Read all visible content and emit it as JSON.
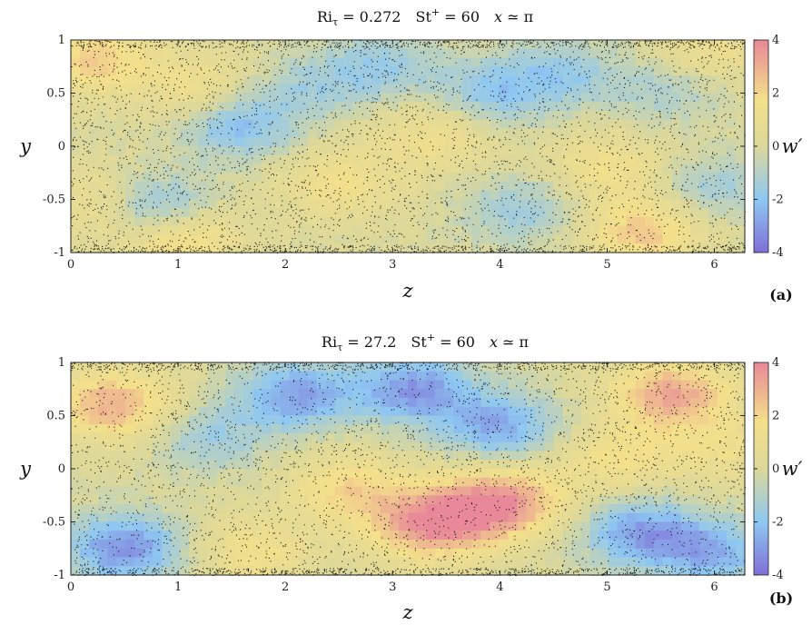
{
  "figure": {
    "colormap": [
      "#7f6fd8",
      "#8ec8f2",
      "#dcd89a",
      "#f4e08a",
      "#e88898"
    ],
    "particle_color": "#000000"
  },
  "chart_data": [
    {
      "type": "heatmap",
      "panel_label": "(a)",
      "title_parts": {
        "ri": "Ri",
        "ri_sub": "τ",
        "ri_val": " = 0.272",
        "st": "St",
        "st_sup": "+",
        "st_val": " = 60",
        "x": "x",
        "x_val": " ≃ π"
      },
      "xlabel": "z",
      "ylabel": "y",
      "colorbar_label": "w′",
      "xlim": [
        0,
        6.2832
      ],
      "ylim": [
        -1,
        1
      ],
      "clim": [
        -4,
        4
      ],
      "xticks": [
        0,
        1,
        2,
        3,
        4,
        5,
        6
      ],
      "xtick_labels": [
        "0",
        "1",
        "2",
        "3",
        "4",
        "5",
        "6"
      ],
      "yticks": [
        1,
        0.5,
        0,
        -0.5,
        -1
      ],
      "ytick_labels": [
        "1",
        "0.5",
        "0",
        "-0.5",
        "-1"
      ],
      "cticks": [
        4,
        2,
        0,
        -2,
        -4
      ],
      "ctick_labels": [
        "4",
        "2",
        "0",
        "-2",
        "-4"
      ],
      "field_blobs": [
        {
          "z": 0.3,
          "y": -0.55,
          "w": 1.8
        },
        {
          "z": 0.75,
          "y": -0.6,
          "w": -3.0
        },
        {
          "z": 0.2,
          "y": 0.82,
          "w": 2.2
        },
        {
          "z": 1.0,
          "y": -0.85,
          "w": 2.5
        },
        {
          "z": 1.55,
          "y": 0.2,
          "w": -2.2
        },
        {
          "z": 1.2,
          "y": 0.55,
          "w": 1.5
        },
        {
          "z": 2.2,
          "y": 0.55,
          "w": -1.2
        },
        {
          "z": 2.5,
          "y": -0.35,
          "w": 1.5
        },
        {
          "z": 2.9,
          "y": 0.75,
          "w": -1.6
        },
        {
          "z": 3.4,
          "y": 0.1,
          "w": 1.4
        },
        {
          "z": 3.95,
          "y": 0.5,
          "w": -1.8
        },
        {
          "z": 4.6,
          "y": 0.7,
          "w": -1.5
        },
        {
          "z": 4.2,
          "y": -0.6,
          "w": -1.6
        },
        {
          "z": 5.0,
          "y": -0.2,
          "w": 1.5
        },
        {
          "z": 5.6,
          "y": 0.55,
          "w": -1.4
        },
        {
          "z": 5.35,
          "y": -0.8,
          "w": 2.4
        },
        {
          "z": 6.0,
          "y": -0.4,
          "w": -1.4
        },
        {
          "z": 5.9,
          "y": 0.85,
          "w": 1.4
        }
      ],
      "particle_density": 0.55
    },
    {
      "type": "heatmap",
      "panel_label": "(b)",
      "title_parts": {
        "ri": "Ri",
        "ri_sub": "τ",
        "ri_val": " = 27.2",
        "st": "St",
        "st_sup": "+",
        "st_val": " = 60",
        "x": "x",
        "x_val": " ≃ π"
      },
      "xlabel": "z",
      "ylabel": "y",
      "colorbar_label": "w′",
      "xlim": [
        0,
        6.2832
      ],
      "ylim": [
        -1,
        1
      ],
      "clim": [
        -4,
        4
      ],
      "xticks": [
        0,
        1,
        2,
        3,
        4,
        5,
        6
      ],
      "xtick_labels": [
        "0",
        "1",
        "2",
        "3",
        "4",
        "5",
        "6"
      ],
      "yticks": [
        1,
        0.5,
        0,
        -0.5,
        -1
      ],
      "ytick_labels": [
        "1",
        "0.5",
        "0",
        "-0.5",
        "-1"
      ],
      "cticks": [
        4,
        2,
        0,
        -2,
        -4
      ],
      "ctick_labels": [
        "4",
        "2",
        "0",
        "-2",
        "-4"
      ],
      "field_blobs": [
        {
          "z": 0.4,
          "y": 0.6,
          "w": 3.0
        },
        {
          "z": 0.5,
          "y": -0.75,
          "w": -3.2
        },
        {
          "z": 1.3,
          "y": 0.3,
          "w": -1.5
        },
        {
          "z": 2.1,
          "y": 0.7,
          "w": -2.8
        },
        {
          "z": 3.2,
          "y": 0.75,
          "w": -3.0
        },
        {
          "z": 4.0,
          "y": 0.4,
          "w": -2.6
        },
        {
          "z": 2.6,
          "y": -0.2,
          "w": 2.0
        },
        {
          "z": 3.3,
          "y": -0.55,
          "w": 2.8
        },
        {
          "z": 3.7,
          "y": -0.4,
          "w": 2.2
        },
        {
          "z": 4.1,
          "y": -0.3,
          "w": 2.6
        },
        {
          "z": 5.6,
          "y": 0.7,
          "w": 3.2
        },
        {
          "z": 5.1,
          "y": 0.1,
          "w": 1.6
        },
        {
          "z": 5.3,
          "y": -0.6,
          "w": -2.8
        },
        {
          "z": 6.0,
          "y": -0.8,
          "w": -2.4
        },
        {
          "z": 1.7,
          "y": -0.8,
          "w": 1.5
        },
        {
          "z": 6.1,
          "y": 0.2,
          "w": 1.2
        }
      ],
      "particle_density": 0.5
    }
  ]
}
